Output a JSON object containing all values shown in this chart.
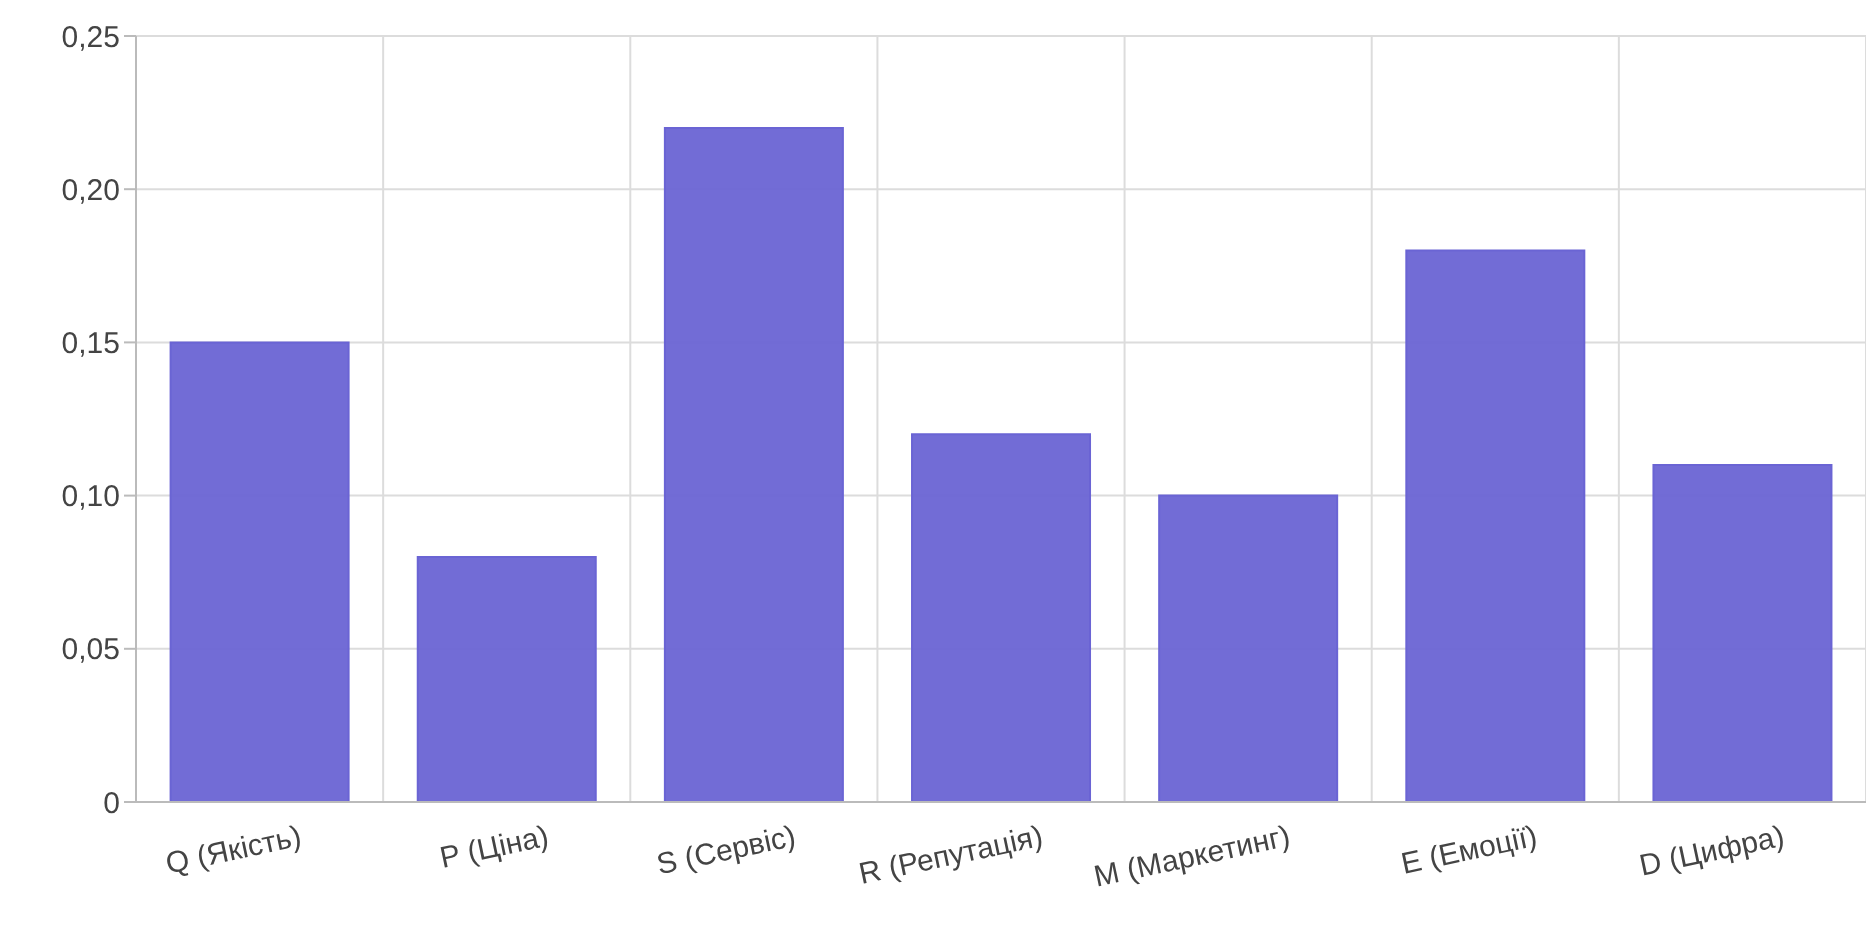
{
  "chart_data": {
    "type": "bar",
    "categories": [
      "Q (Якість)",
      "P (Ціна)",
      "S (Сервіс)",
      "R (Репутація)",
      "M (Маркетинг)",
      "E (Емоції)",
      "D (Цифра)"
    ],
    "values": [
      0.15,
      0.08,
      0.22,
      0.12,
      0.1,
      0.18,
      0.11
    ],
    "color": "#6a64d4",
    "ylim": [
      0,
      0.25
    ],
    "yticks": [
      0,
      {
        "value": 0.05,
        "label": "0,05"
      },
      {
        "value": 0.1,
        "label": "0,10"
      },
      {
        "value": 0.15,
        "label": "0,15"
      },
      {
        "value": 0.2,
        "label": "0,20"
      },
      {
        "value": 0.25,
        "label": "0,25"
      }
    ],
    "grid": true
  }
}
